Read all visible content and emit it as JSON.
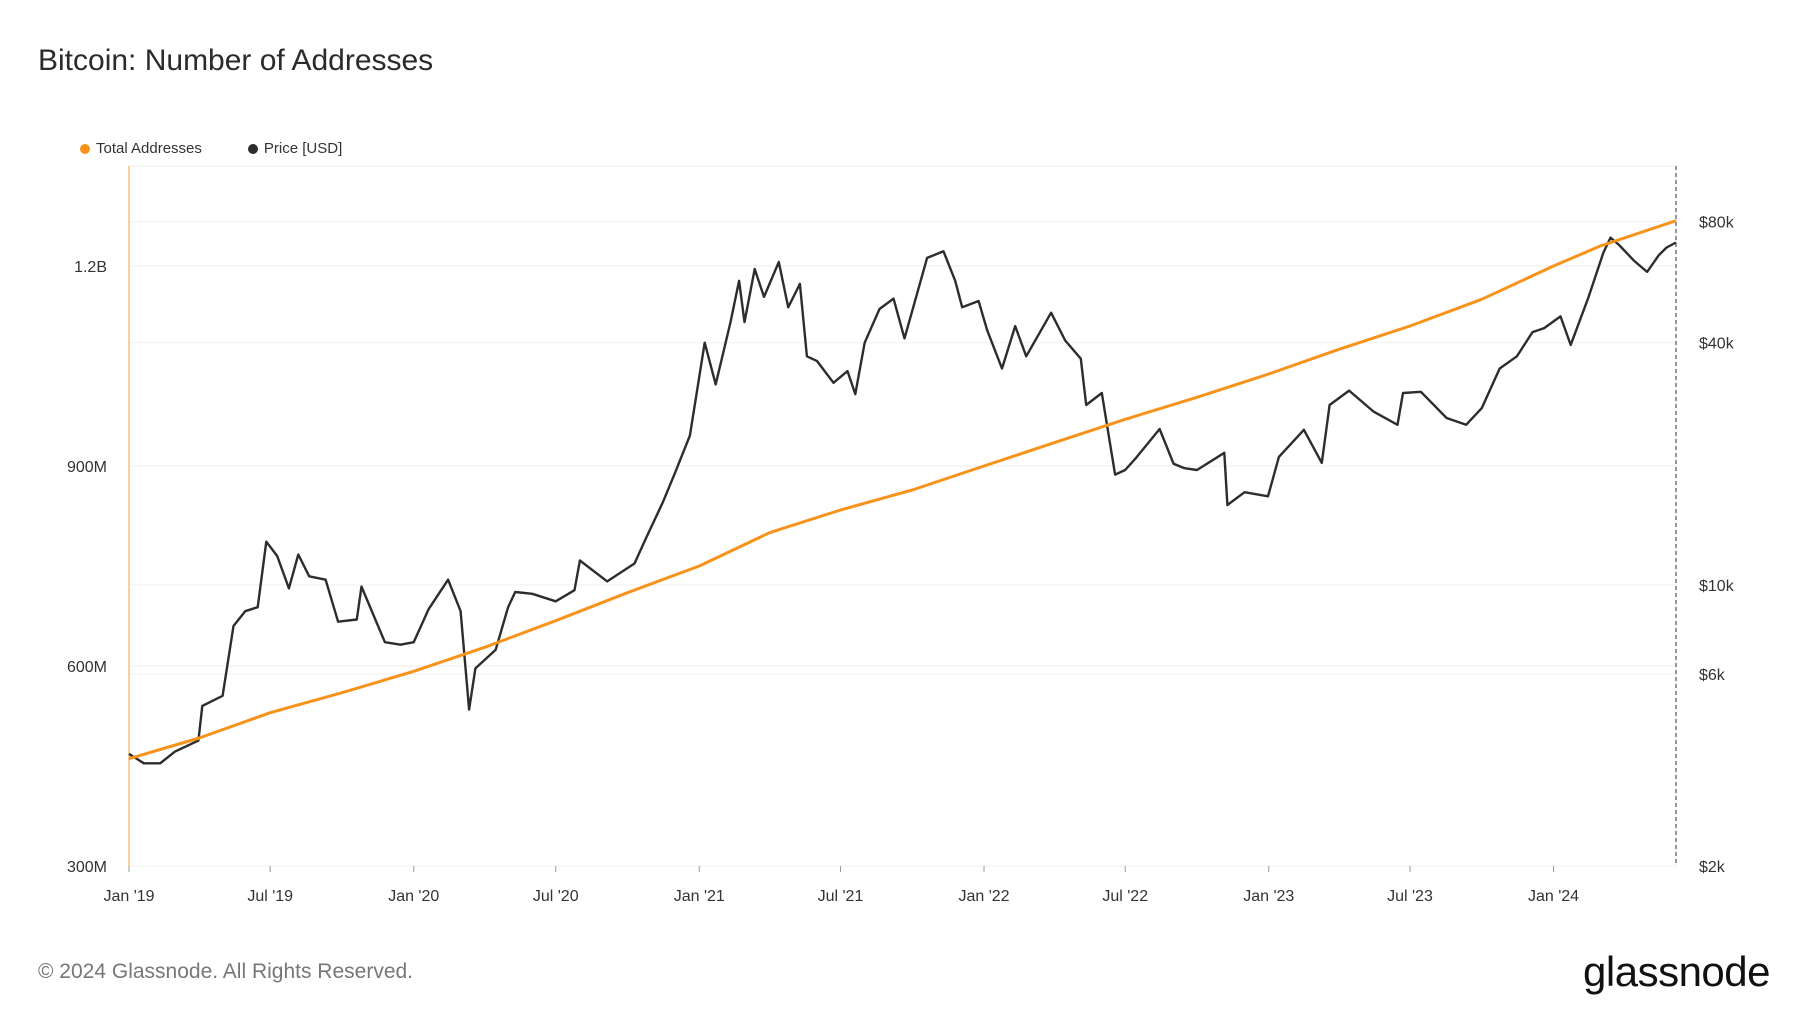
{
  "header": {
    "title": "Bitcoin: Number of Addresses"
  },
  "legend": [
    {
      "name": "Total Addresses",
      "color": "#f7931a"
    },
    {
      "name": "Price [USD]",
      "color": "#2d2d2d"
    }
  ],
  "footer": {
    "copyright": "© 2024 Glassnode. All Rights Reserved.",
    "logo_text": "glassnode"
  },
  "chart_data": {
    "type": "line",
    "x_range": [
      "2019-01-01",
      "2024-06-06"
    ],
    "x_ticks": [
      "Jan '19",
      "Jul '19",
      "Jan '20",
      "Jul '20",
      "Jan '21",
      "Jul '21",
      "Jan '22",
      "Jul '22",
      "Jan '23",
      "Jul '23",
      "Jan '24"
    ],
    "y_left": {
      "label": "",
      "ticks": [
        "300M",
        "600M",
        "900M",
        "1.2B"
      ],
      "tick_values": [
        300000000,
        600000000,
        900000000,
        1200000000
      ],
      "range": [
        300000000,
        1350000000
      ],
      "scale": "linear"
    },
    "y_right": {
      "label": "",
      "ticks": [
        "$2k",
        "$6k",
        "$10k",
        "$40k",
        "$80k"
      ],
      "tick_values": [
        2000,
        6000,
        10000,
        40000,
        80000
      ],
      "range": [
        2000,
        110000
      ],
      "scale": "log"
    },
    "grid": true,
    "legend_position": "top-left",
    "series": [
      {
        "name": "Total Addresses",
        "axis": "left",
        "color": "#f7931a",
        "points": [
          [
            "2019-01-01",
            461000000
          ],
          [
            "2019-04-01",
            492000000
          ],
          [
            "2019-07-01",
            530000000
          ],
          [
            "2019-10-01",
            560000000
          ],
          [
            "2020-01-01",
            592000000
          ],
          [
            "2020-04-01",
            628000000
          ],
          [
            "2020-07-01",
            668000000
          ],
          [
            "2020-10-01",
            710000000
          ],
          [
            "2021-01-01",
            750000000
          ],
          [
            "2021-04-01",
            800000000
          ],
          [
            "2021-07-01",
            834000000
          ],
          [
            "2021-10-01",
            864000000
          ],
          [
            "2022-01-01",
            900000000
          ],
          [
            "2022-04-01",
            935000000
          ],
          [
            "2022-07-01",
            970000000
          ],
          [
            "2022-10-01",
            1003000000
          ],
          [
            "2023-01-01",
            1038000000
          ],
          [
            "2023-04-01",
            1075000000
          ],
          [
            "2023-07-01",
            1110000000
          ],
          [
            "2023-10-01",
            1150000000
          ],
          [
            "2024-01-01",
            1200000000
          ],
          [
            "2024-03-01",
            1230000000
          ],
          [
            "2024-06-06",
            1268000000
          ]
        ]
      },
      {
        "name": "Price [USD]",
        "axis": "right",
        "color": "#2d2d2d",
        "points": [
          [
            "2019-01-01",
            3800
          ],
          [
            "2019-01-20",
            3600
          ],
          [
            "2019-02-10",
            3600
          ],
          [
            "2019-03-01",
            3850
          ],
          [
            "2019-03-31",
            4100
          ],
          [
            "2019-04-05",
            5000
          ],
          [
            "2019-05-01",
            5300
          ],
          [
            "2019-05-15",
            7900
          ],
          [
            "2019-05-30",
            8600
          ],
          [
            "2019-06-15",
            8800
          ],
          [
            "2019-06-26",
            12800
          ],
          [
            "2019-07-10",
            11800
          ],
          [
            "2019-07-25",
            9800
          ],
          [
            "2019-08-06",
            11900
          ],
          [
            "2019-08-20",
            10500
          ],
          [
            "2019-09-10",
            10300
          ],
          [
            "2019-09-26",
            8100
          ],
          [
            "2019-10-20",
            8200
          ],
          [
            "2019-10-26",
            9900
          ],
          [
            "2019-11-25",
            7200
          ],
          [
            "2019-12-15",
            7100
          ],
          [
            "2020-01-01",
            7200
          ],
          [
            "2020-01-20",
            8700
          ],
          [
            "2020-02-14",
            10300
          ],
          [
            "2020-03-01",
            8600
          ],
          [
            "2020-03-12",
            4900
          ],
          [
            "2020-03-20",
            6200
          ],
          [
            "2020-04-15",
            6900
          ],
          [
            "2020-05-01",
            8800
          ],
          [
            "2020-05-10",
            9600
          ],
          [
            "2020-06-01",
            9500
          ],
          [
            "2020-07-01",
            9100
          ],
          [
            "2020-07-25",
            9700
          ],
          [
            "2020-08-01",
            11500
          ],
          [
            "2020-09-05",
            10200
          ],
          [
            "2020-10-10",
            11300
          ],
          [
            "2020-10-25",
            13100
          ],
          [
            "2020-11-15",
            16000
          ],
          [
            "2020-12-01",
            19000
          ],
          [
            "2020-12-20",
            23500
          ],
          [
            "2021-01-08",
            40000
          ],
          [
            "2021-01-22",
            31500
          ],
          [
            "2021-02-10",
            45000
          ],
          [
            "2021-02-21",
            57000
          ],
          [
            "2021-02-28",
            45000
          ],
          [
            "2021-03-13",
            61000
          ],
          [
            "2021-03-25",
            52000
          ],
          [
            "2021-04-13",
            63500
          ],
          [
            "2021-04-25",
            49000
          ],
          [
            "2021-05-10",
            56000
          ],
          [
            "2021-05-19",
            37000
          ],
          [
            "2021-06-01",
            36000
          ],
          [
            "2021-06-22",
            31800
          ],
          [
            "2021-07-10",
            34000
          ],
          [
            "2021-07-20",
            29800
          ],
          [
            "2021-08-01",
            40000
          ],
          [
            "2021-08-20",
            48500
          ],
          [
            "2021-09-07",
            51500
          ],
          [
            "2021-09-21",
            41000
          ],
          [
            "2021-10-20",
            65000
          ],
          [
            "2021-11-10",
            67500
          ],
          [
            "2021-11-25",
            57000
          ],
          [
            "2021-12-04",
            49000
          ],
          [
            "2021-12-25",
            50800
          ],
          [
            "2022-01-05",
            43000
          ],
          [
            "2022-01-24",
            34500
          ],
          [
            "2022-02-10",
            44000
          ],
          [
            "2022-02-24",
            37000
          ],
          [
            "2022-03-28",
            47500
          ],
          [
            "2022-04-15",
            40500
          ],
          [
            "2022-05-05",
            36500
          ],
          [
            "2022-05-12",
            28000
          ],
          [
            "2022-06-01",
            30000
          ],
          [
            "2022-06-18",
            18800
          ],
          [
            "2022-07-01",
            19300
          ],
          [
            "2022-07-15",
            20700
          ],
          [
            "2022-08-14",
            24400
          ],
          [
            "2022-09-01",
            20000
          ],
          [
            "2022-09-15",
            19500
          ],
          [
            "2022-10-01",
            19300
          ],
          [
            "2022-11-05",
            21300
          ],
          [
            "2022-11-09",
            15800
          ],
          [
            "2022-12-01",
            17000
          ],
          [
            "2022-12-31",
            16600
          ],
          [
            "2023-01-14",
            20800
          ],
          [
            "2023-02-15",
            24300
          ],
          [
            "2023-03-10",
            20100
          ],
          [
            "2023-03-20",
            28000
          ],
          [
            "2023-04-14",
            30400
          ],
          [
            "2023-05-15",
            27000
          ],
          [
            "2023-06-15",
            25000
          ],
          [
            "2023-06-22",
            30000
          ],
          [
            "2023-07-15",
            30200
          ],
          [
            "2023-08-17",
            26000
          ],
          [
            "2023-09-11",
            25000
          ],
          [
            "2023-10-01",
            27500
          ],
          [
            "2023-10-24",
            34500
          ],
          [
            "2023-11-15",
            37000
          ],
          [
            "2023-12-05",
            42500
          ],
          [
            "2023-12-20",
            43500
          ],
          [
            "2024-01-10",
            46500
          ],
          [
            "2024-01-23",
            39500
          ],
          [
            "2024-02-15",
            52000
          ],
          [
            "2024-03-05",
            67000
          ],
          [
            "2024-03-14",
            73000
          ],
          [
            "2024-03-25",
            70000
          ],
          [
            "2024-04-13",
            64000
          ],
          [
            "2024-04-30",
            60000
          ],
          [
            "2024-05-15",
            66000
          ],
          [
            "2024-05-25",
            69000
          ],
          [
            "2024-06-06",
            71000
          ]
        ]
      }
    ]
  }
}
